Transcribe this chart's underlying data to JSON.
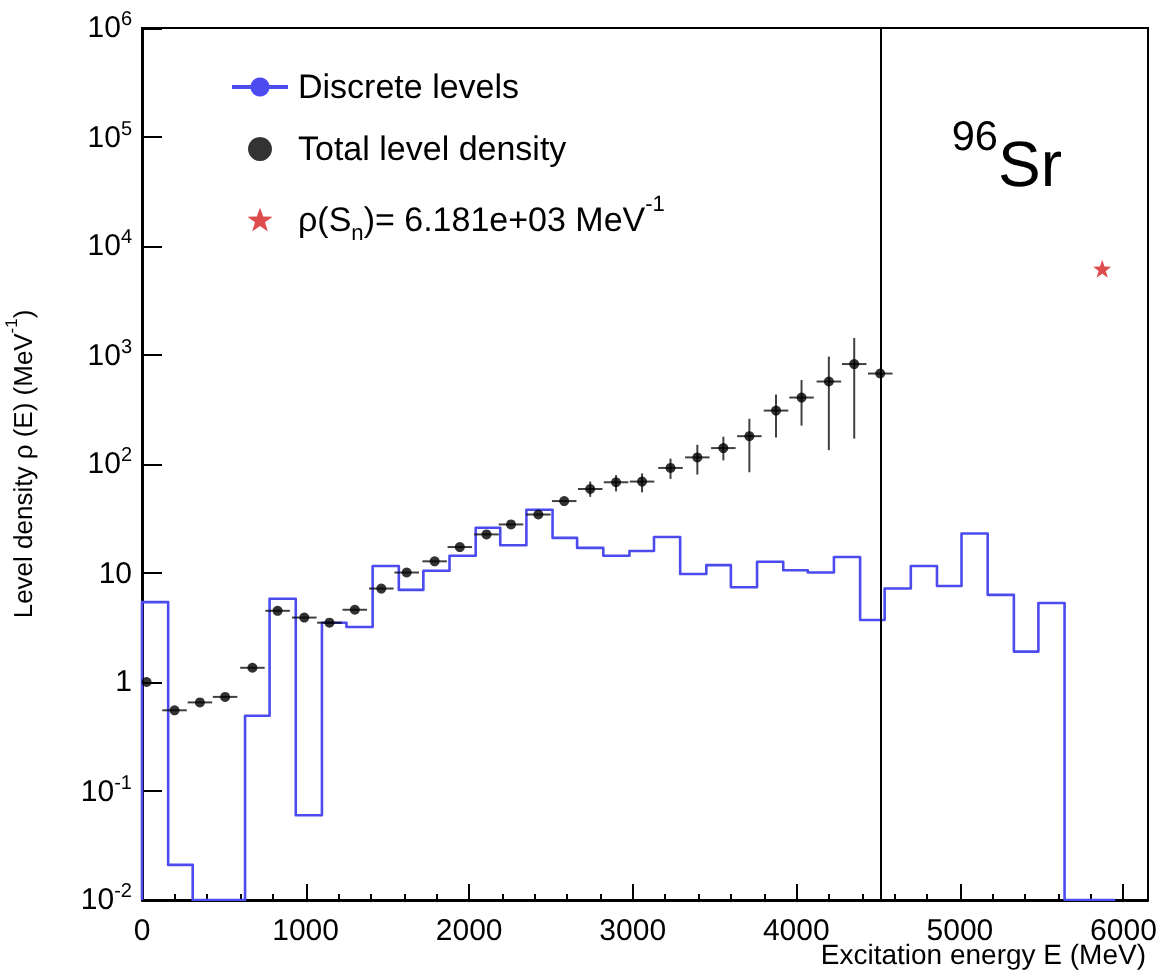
{
  "chart_data": {
    "type": "scatter",
    "xlabel": "Excitation energy E (MeV)",
    "ylabel": "Level density ρ (E) (MeV$^{-1}$)",
    "annotations": [
      "$^{96}$Sr"
    ],
    "xlim": [
      0,
      6150
    ],
    "xticks": [
      0,
      1000,
      2000,
      3000,
      4000,
      5000,
      6000
    ],
    "ylim": [
      0.01,
      1000000
    ],
    "yticks": [
      {
        "value": 0.01,
        "label": "10$^{-2}$"
      },
      {
        "value": 0.1,
        "label": "10$^{-1}$"
      },
      1,
      10,
      {
        "value": 100,
        "label": "10$^{2}$"
      },
      {
        "value": 1000,
        "label": "10$^{3}$"
      },
      {
        "value": 10000,
        "label": "10$^{4}$"
      },
      {
        "value": 100000,
        "label": "10$^{5}$"
      },
      {
        "value": 1000000,
        "label": "10$^{6}$"
      }
    ],
    "log": "y",
    "legend": "top left",
    "ref_lines": [
      {
        "axis": "x",
        "value": 4510,
        "color": "#000000"
      }
    ],
    "series": [
      {
        "type": "histogram",
        "name": "Discrete levels",
        "color": "#4b4bf0",
        "bins": [
          0,
          160,
          310,
          470,
          630,
          780,
          940,
          1100,
          1250,
          1410,
          1570,
          1720,
          1880,
          2040,
          2190,
          2350,
          2510,
          2660,
          2820,
          2980,
          3130,
          3290,
          3450,
          3600,
          3760,
          3920,
          4070,
          4230,
          4390,
          4540,
          4700,
          4860,
          5010,
          5170,
          5330,
          5480,
          5640,
          5800,
          5950
        ],
        "values": [
          5.4,
          0.021,
          0.01,
          0.01,
          0.49,
          5.8,
          0.06,
          3.5,
          3.2,
          11.6,
          7.0,
          10.5,
          14.4,
          26,
          18,
          38,
          21,
          17,
          14.4,
          15.9,
          21.4,
          9.8,
          11.8,
          7.4,
          12.7,
          10.6,
          10.1,
          14,
          3.7,
          7.2,
          11.6,
          7.6,
          23,
          6.3,
          1.9,
          5.3,
          0.01,
          0.01
        ]
      },
      {
        "type": "scatter",
        "name": "Total level density",
        "color": "#000000",
        "marker": "circle",
        "x": [
          28,
          199,
          354,
          508,
          675,
          829,
          992,
          1146,
          1301,
          1463,
          1618,
          1789,
          1943,
          2106,
          2256,
          2423,
          2581,
          2740,
          2898,
          3057,
          3231,
          3395,
          3554,
          3713,
          3876,
          4032,
          4199,
          4354,
          4513
        ],
        "values": [
          1.0,
          0.55,
          0.65,
          0.73,
          1.35,
          4.5,
          3.9,
          3.5,
          4.6,
          7.2,
          10.1,
          12.8,
          17.3,
          22.6,
          27.9,
          34.4,
          45.7,
          59,
          68,
          69,
          92,
          115,
          140,
          180,
          309,
          407,
          571,
          826,
          676
        ],
        "errors": [
          null,
          null,
          null,
          null,
          null,
          null,
          null,
          null,
          null,
          null,
          null,
          null,
          null,
          null,
          null,
          null,
          null,
          [
            50,
            69
          ],
          [
            56,
            79
          ],
          [
            55,
            82
          ],
          [
            73,
            112
          ],
          [
            80,
            150
          ],
          [
            108,
            178
          ],
          [
            84,
            260
          ],
          [
            175,
            433
          ],
          [
            225,
            589
          ],
          [
            134,
            967
          ],
          [
            171,
            1432
          ],
          null
        ],
        "xerrors": [
          null,
          75,
          75,
          75,
          75,
          75,
          75,
          75,
          75,
          75,
          75,
          75,
          75,
          75,
          75,
          75,
          75,
          75,
          75,
          75,
          75,
          75,
          75,
          75,
          75,
          75,
          75,
          75,
          75
        ]
      },
      {
        "type": "scatter",
        "name": "ρ(S$_{n}$)= 6.181e+03 MeV$^{-1}$",
        "color": "#d42020",
        "marker": "star",
        "x": [
          5870
        ],
        "values": [
          6181
        ]
      }
    ]
  }
}
